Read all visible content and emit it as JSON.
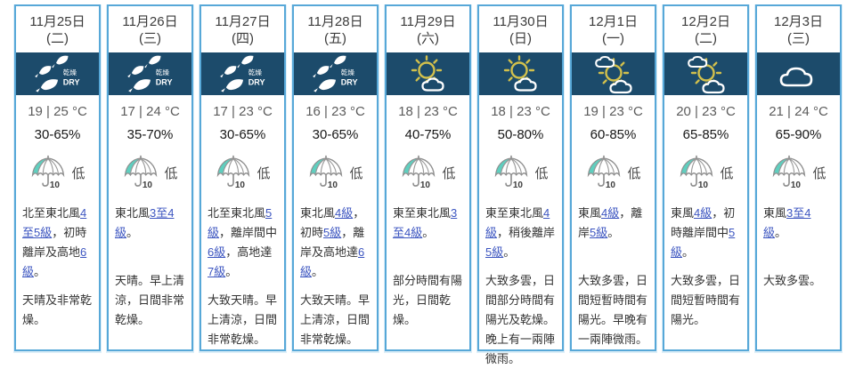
{
  "colors": {
    "column_border": "#57a8d8",
    "icon_band_bg": "#1c4b6b",
    "link": "#3c55c0",
    "sun_yellow": "#d2c04c",
    "umbrella_teal": "#5fcfbf"
  },
  "dry_icon_text": {
    "zh": "乾燥",
    "en": "DRY"
  },
  "days": [
    {
      "date": "11月25日",
      "weekday": "(二)",
      "icon": "dry",
      "temp": "19 | 25 °C",
      "humidity": "30-65%",
      "psr": {
        "value": "10",
        "label": "低"
      },
      "wind": [
        {
          "t": "北至東北風",
          "link": false
        },
        {
          "t": "4至5級",
          "link": true
        },
        {
          "t": "，初時離岸及高地",
          "link": false
        },
        {
          "t": "6級",
          "link": true
        },
        {
          "t": "。",
          "link": false
        }
      ],
      "forecast": "天晴及非常乾燥。"
    },
    {
      "date": "11月26日",
      "weekday": "(三)",
      "icon": "dry",
      "temp": "17 | 24 °C",
      "humidity": "35-70%",
      "psr": {
        "value": "10",
        "label": "低"
      },
      "wind": [
        {
          "t": "東北風",
          "link": false
        },
        {
          "t": "3至4級",
          "link": true
        },
        {
          "t": "。",
          "link": false
        }
      ],
      "forecast": "天晴。早上清涼，日間非常乾燥。"
    },
    {
      "date": "11月27日",
      "weekday": "(四)",
      "icon": "dry",
      "temp": "17 | 23 °C",
      "humidity": "30-65%",
      "psr": {
        "value": "10",
        "label": "低"
      },
      "wind": [
        {
          "t": "北至東北風",
          "link": false
        },
        {
          "t": "5級",
          "link": true
        },
        {
          "t": "，離岸間中",
          "link": false
        },
        {
          "t": "6級",
          "link": true
        },
        {
          "t": "，高地達",
          "link": false
        },
        {
          "t": "7級",
          "link": true
        },
        {
          "t": "。",
          "link": false
        }
      ],
      "forecast": "大致天晴。早上清涼，日間非常乾燥。"
    },
    {
      "date": "11月28日",
      "weekday": "(五)",
      "icon": "dry",
      "temp": "16 | 23 °C",
      "humidity": "30-65%",
      "psr": {
        "value": "10",
        "label": "低"
      },
      "wind": [
        {
          "t": "東北風",
          "link": false
        },
        {
          "t": "4級",
          "link": true
        },
        {
          "t": "，初時",
          "link": false
        },
        {
          "t": "5級",
          "link": true
        },
        {
          "t": "，離岸及高地達",
          "link": false
        },
        {
          "t": "6級",
          "link": true
        },
        {
          "t": "。",
          "link": false
        }
      ],
      "forecast": "大致天晴。早上清涼，日間非常乾燥。"
    },
    {
      "date": "11月29日",
      "weekday": "(六)",
      "icon": "sunny_periods",
      "temp": "18 | 23 °C",
      "humidity": "40-75%",
      "psr": {
        "value": "10",
        "label": "低"
      },
      "wind": [
        {
          "t": "東至東北風",
          "link": false
        },
        {
          "t": "3至4級",
          "link": true
        },
        {
          "t": "。",
          "link": false
        }
      ],
      "forecast": "部分時間有陽光，日間乾燥。"
    },
    {
      "date": "11月30日",
      "weekday": "(日)",
      "icon": "sunny_periods",
      "temp": "18 | 23 °C",
      "humidity": "50-80%",
      "psr": {
        "value": "10",
        "label": "低"
      },
      "wind": [
        {
          "t": "東至東北風",
          "link": false
        },
        {
          "t": "4級",
          "link": true
        },
        {
          "t": "，稍後離岸",
          "link": false
        },
        {
          "t": "5級",
          "link": true
        },
        {
          "t": "。",
          "link": false
        }
      ],
      "forecast": "大致多雲，日間部分時間有陽光及乾燥。晚上有一兩陣微雨。"
    },
    {
      "date": "12月1日",
      "weekday": "(一)",
      "icon": "sunny_intervals",
      "temp": "19 | 23 °C",
      "humidity": "60-85%",
      "psr": {
        "value": "10",
        "label": "低"
      },
      "wind": [
        {
          "t": "東風",
          "link": false
        },
        {
          "t": "4級",
          "link": true
        },
        {
          "t": "，離岸",
          "link": false
        },
        {
          "t": "5級",
          "link": true
        },
        {
          "t": "。",
          "link": false
        }
      ],
      "forecast": "大致多雲，日間短暫時間有陽光。早晚有一兩陣微雨。"
    },
    {
      "date": "12月2日",
      "weekday": "(二)",
      "icon": "sunny_intervals",
      "temp": "20 | 23 °C",
      "humidity": "65-85%",
      "psr": {
        "value": "10",
        "label": "低"
      },
      "wind": [
        {
          "t": "東風",
          "link": false
        },
        {
          "t": "4級",
          "link": true
        },
        {
          "t": "，初時離岸間中",
          "link": false
        },
        {
          "t": "5級",
          "link": true
        },
        {
          "t": "。",
          "link": false
        }
      ],
      "forecast": "大致多雲，日間短暫時間有陽光。"
    },
    {
      "date": "12月3日",
      "weekday": "(三)",
      "icon": "cloudy",
      "temp": "21 | 24 °C",
      "humidity": "65-90%",
      "psr": {
        "value": "10",
        "label": "低"
      },
      "wind": [
        {
          "t": "東風",
          "link": false
        },
        {
          "t": "3至4級",
          "link": true
        },
        {
          "t": "。",
          "link": false
        }
      ],
      "forecast": "大致多雲。"
    }
  ]
}
